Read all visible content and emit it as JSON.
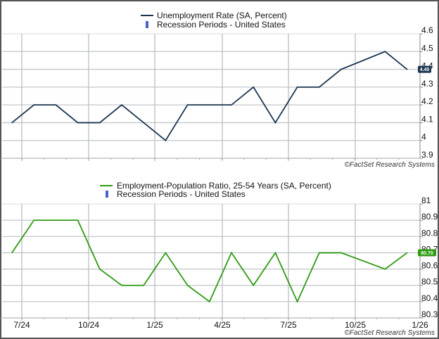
{
  "chart_data": [
    {
      "type": "line",
      "title": "",
      "legend": [
        {
          "label": "Unemployment Rate (SA, Percent)",
          "kind": "line",
          "color": "#1b3550"
        },
        {
          "label": "Recession Periods - United States",
          "kind": "bar",
          "color": "#4a63c8"
        }
      ],
      "legend_placement": "top-center",
      "x": [
        "2024-06",
        "2024-07",
        "2024-08",
        "2024-09",
        "2024-10",
        "2024-11",
        "2024-12",
        "2025-01",
        "2025-02",
        "2025-03",
        "2025-04",
        "2025-05",
        "2025-06",
        "2025-07",
        "2025-08",
        "2025-09",
        "2025-10",
        "2025-11",
        "2025-12"
      ],
      "series": [
        {
          "name": "Unemployment Rate (SA, Percent)",
          "color": "#1b3550",
          "values": [
            4.1,
            4.2,
            4.2,
            4.1,
            4.1,
            4.2,
            4.1,
            4.0,
            4.2,
            4.2,
            4.2,
            4.3,
            4.1,
            4.3,
            4.3,
            4.4,
            null,
            4.5,
            4.4
          ]
        }
      ],
      "last_value_label": "4.40",
      "yticks": [
        "4.6",
        "4.5",
        "4.4",
        "4.3",
        "4.2",
        "4.1",
        "4",
        "3.9"
      ],
      "ylim": [
        3.9,
        4.6
      ],
      "yaxis_side": "right",
      "grid": true,
      "credit": "©FactSet Research Systems"
    },
    {
      "type": "line",
      "title": "",
      "legend": [
        {
          "label": "Employment-Population Ratio, 25-54 Years (SA, Percent)",
          "kind": "line",
          "color": "#2e9a12"
        },
        {
          "label": "Recession Periods - United States",
          "kind": "bar",
          "color": "#4a63c8"
        }
      ],
      "legend_placement": "top-center",
      "x": [
        "2024-06",
        "2024-07",
        "2024-08",
        "2024-09",
        "2024-10",
        "2024-11",
        "2024-12",
        "2025-01",
        "2025-02",
        "2025-03",
        "2025-04",
        "2025-05",
        "2025-06",
        "2025-07",
        "2025-08",
        "2025-09",
        "2025-10",
        "2025-11",
        "2025-12"
      ],
      "series": [
        {
          "name": "Employment-Population Ratio, 25-54 Years (SA, Percent)",
          "color": "#2e9a12",
          "values": [
            80.7,
            80.9,
            80.9,
            80.9,
            80.6,
            80.5,
            80.5,
            80.7,
            80.5,
            80.4,
            80.7,
            80.5,
            80.7,
            80.4,
            80.7,
            80.7,
            null,
            80.6,
            80.7
          ]
        }
      ],
      "last_value_label": "80.70",
      "yticks": [
        "81",
        "80.9",
        "80.8",
        "80.7",
        "80.6",
        "80.5",
        "80.4",
        "80.3"
      ],
      "ylim": [
        80.3,
        81.0
      ],
      "yaxis_side": "right",
      "xtick_labels": [
        "7/24",
        "10/24",
        "1/25",
        "4/25",
        "7/25",
        "10/25",
        "1/26"
      ],
      "grid": true,
      "credit": "©FactSet Research Systems"
    }
  ]
}
